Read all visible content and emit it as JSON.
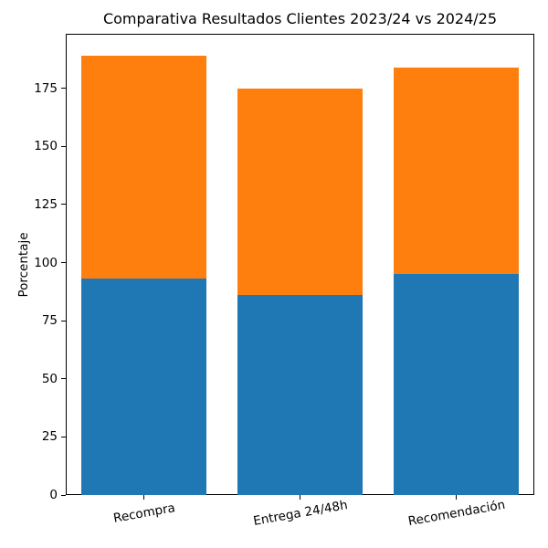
{
  "chart_data": {
    "type": "bar",
    "stacked": true,
    "title": "Comparativa Resultados Clientes 2023/24 vs 2024/25",
    "categories": [
      "Recompra",
      "Entrega 24/48h",
      "Recomendación"
    ],
    "series": [
      {
        "name": "2023/24",
        "color": "#1f77b4",
        "values": [
          93,
          86,
          95
        ]
      },
      {
        "name": "2024/25",
        "color": "#ff7f0e",
        "values": [
          96,
          89,
          89
        ]
      }
    ],
    "xlabel": "",
    "ylabel": "Porcentaje",
    "ylim": [
      0,
      198.45
    ],
    "yticks": [
      0,
      25,
      50,
      75,
      100,
      125,
      150,
      175
    ],
    "x_tick_rotation_deg": -10,
    "bar_width_fraction": 0.8,
    "grid": false,
    "legend": "none",
    "background_color": "#ffffff",
    "spine_color": "#000000"
  }
}
